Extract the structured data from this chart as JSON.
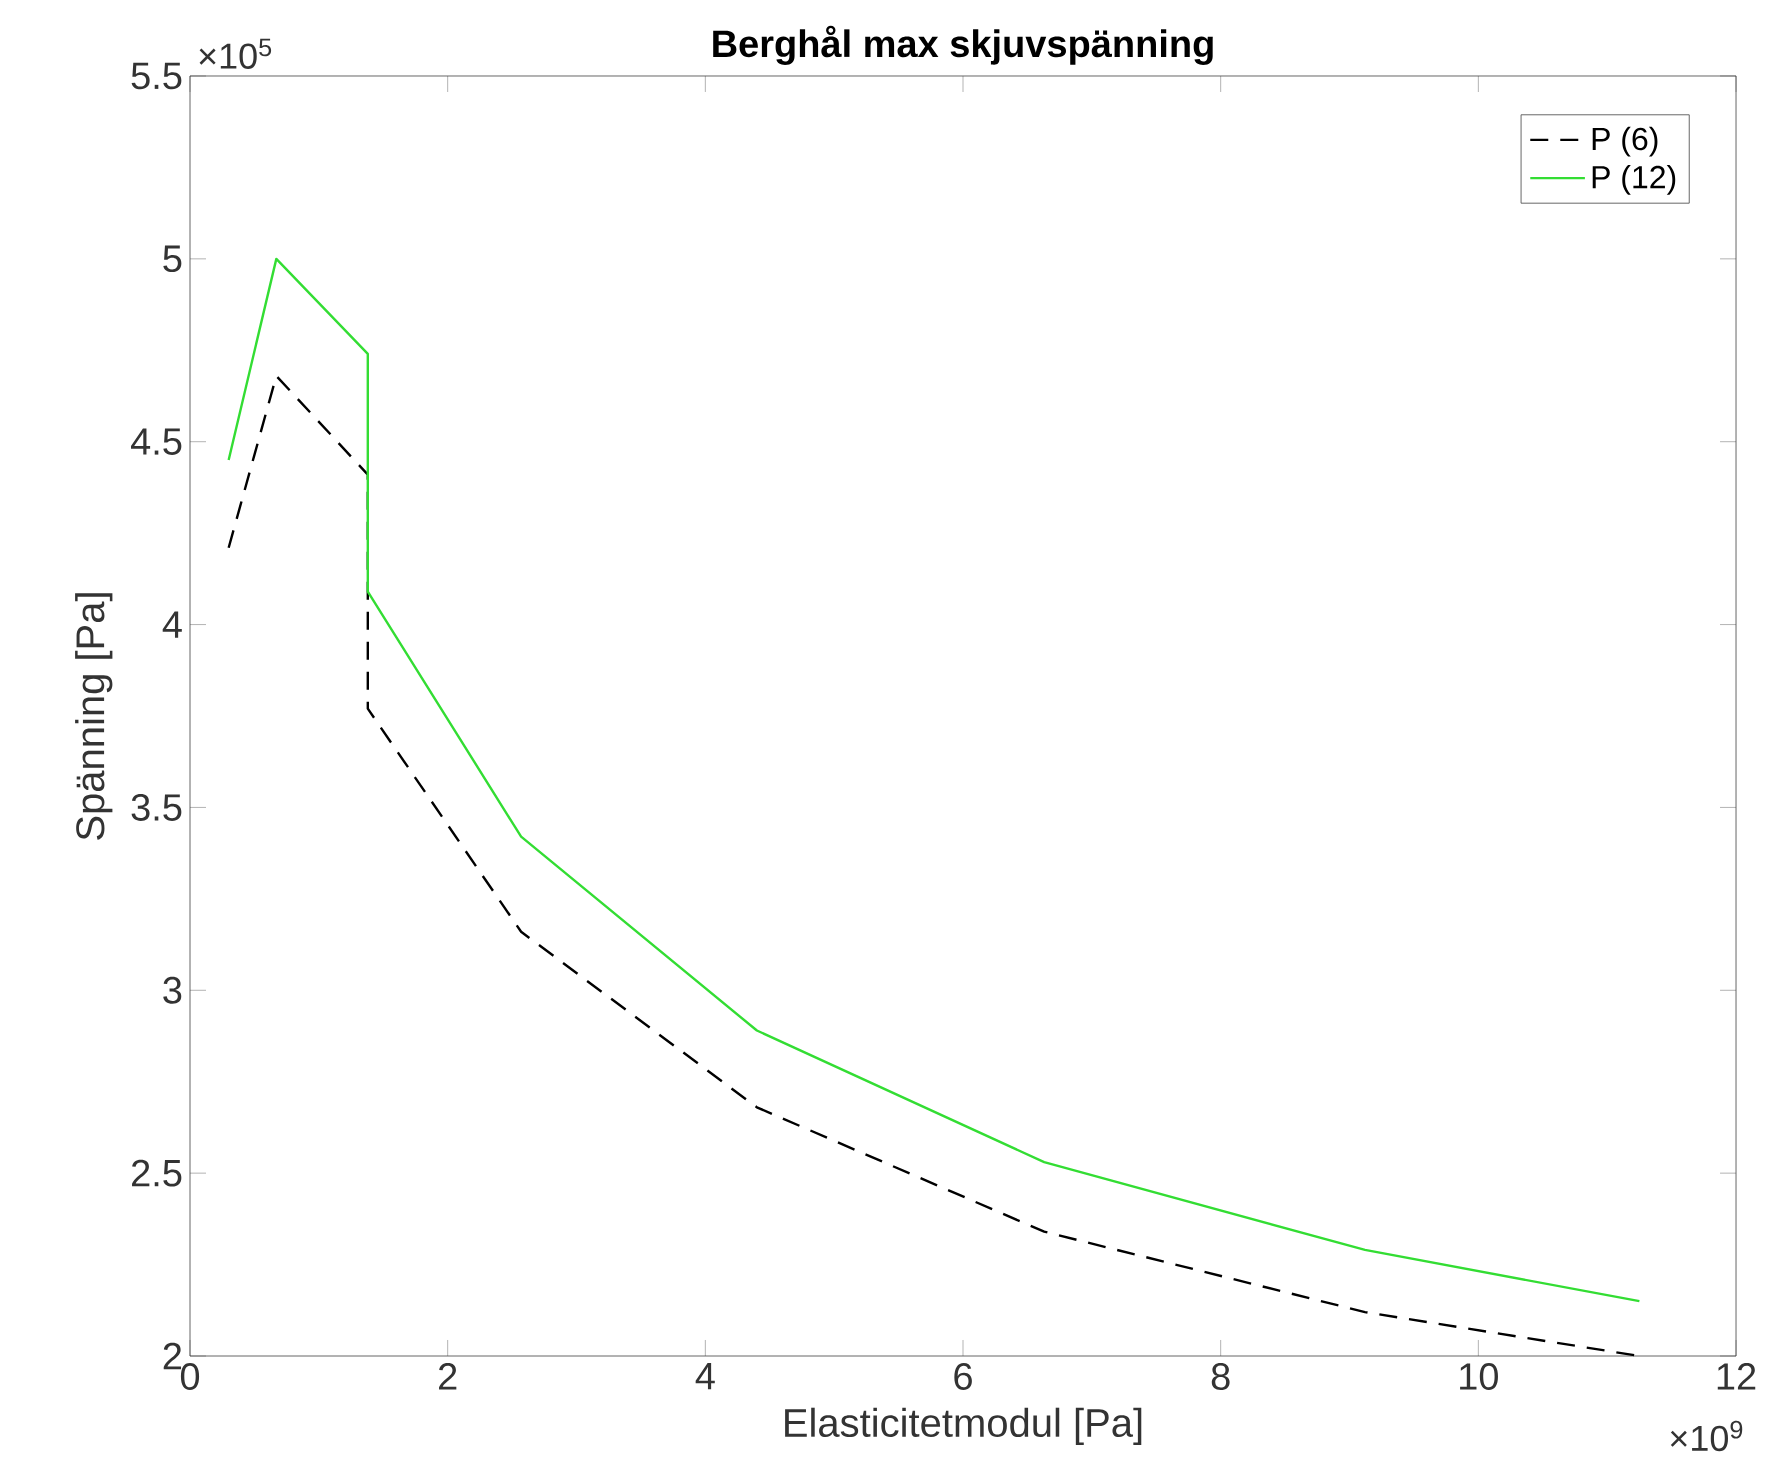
{
  "chart_data": {
    "type": "line",
    "title": "Berghål max skjuvspänning",
    "xlabel": "Elasticitetmodul [Pa]",
    "ylabel": "Spänning [Pa]",
    "annotations": [
      "×10$^{5}$",
      "×10$^{9}$"
    ],
    "x": [
      0.3,
      0.67,
      1.38,
      1.38,
      2.57,
      4.4,
      6.63,
      9.12,
      11.25
    ],
    "series": [
      {
        "name": "P (6)",
        "color": "#000000",
        "line_style": "dashed",
        "values": [
          4.21,
          4.68,
          4.41,
          3.77,
          3.16,
          2.68,
          2.34,
          2.12,
          2.0
        ]
      },
      {
        "name": "P (12)",
        "color": "#33dd33",
        "line_style": "solid",
        "values": [
          4.45,
          5.0,
          4.74,
          4.09,
          3.42,
          2.89,
          2.53,
          2.29,
          2.15
        ]
      }
    ],
    "xlim": [
      0,
      12
    ],
    "ylim": [
      2,
      5.5
    ],
    "xticks": [
      0,
      2,
      4,
      6,
      8,
      10,
      12
    ],
    "yticks": [
      2,
      2.5,
      3,
      3.5,
      4,
      4.5,
      5,
      5.5
    ],
    "grid": false,
    "legend": "top right",
    "marker": "none"
  }
}
